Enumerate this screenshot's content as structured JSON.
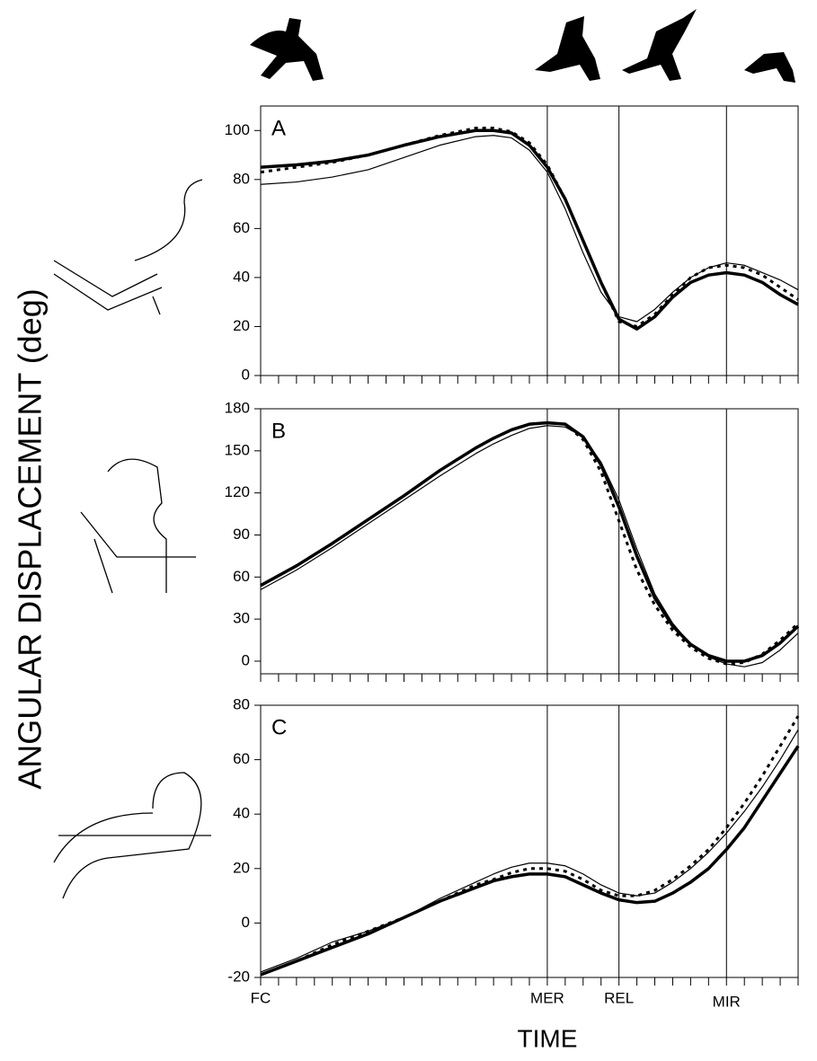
{
  "figure": {
    "y_label": "ANGULAR DISPLACEMENT (deg)",
    "x_label": "TIME",
    "xlim": [
      0,
      30
    ],
    "xticks": [
      {
        "value": 0,
        "label": "FC"
      },
      {
        "value": 16,
        "label": "MER"
      },
      {
        "value": 20,
        "label": "REL"
      },
      {
        "value": 26,
        "label": "MIR"
      }
    ],
    "minor_xticks": [
      0,
      1,
      2,
      3,
      4,
      5,
      6,
      7,
      8,
      9,
      10,
      11,
      12,
      13,
      14,
      15,
      16,
      17,
      18,
      19,
      20,
      21,
      22,
      23,
      24,
      25,
      26,
      27,
      28,
      29,
      30
    ],
    "vlines": [
      16,
      20,
      26
    ]
  },
  "chart_data": [
    {
      "type": "line",
      "label": "A",
      "ylim": [
        0,
        110
      ],
      "yticks": [
        0,
        20,
        40,
        60,
        80,
        100
      ],
      "x": [
        0,
        2,
        4,
        6,
        8,
        10,
        12,
        13,
        14,
        15,
        16,
        17,
        18,
        19,
        20,
        21,
        22,
        23,
        24,
        25,
        26,
        27,
        28,
        29,
        30
      ],
      "series": [
        {
          "style": "thick",
          "color": "#000",
          "values": [
            85,
            86,
            87.5,
            90,
            94,
            97.5,
            100,
            100,
            99,
            94,
            85,
            72,
            55,
            38,
            23,
            19,
            24,
            32,
            38,
            41,
            42,
            41,
            38,
            33,
            29
          ]
        },
        {
          "style": "thin",
          "color": "#000",
          "values": [
            78,
            79,
            81,
            84,
            89,
            94,
            97.5,
            98,
            97,
            92,
            83,
            68,
            50,
            34,
            24,
            22,
            27,
            34,
            40,
            44,
            46,
            45,
            42,
            39,
            35
          ]
        },
        {
          "style": "dashed",
          "color": "#000",
          "values": [
            83,
            85,
            87,
            90,
            94,
            98,
            101,
            101,
            99.5,
            95,
            86,
            72,
            55,
            38,
            22,
            20,
            25,
            33,
            40,
            44,
            45,
            44,
            41,
            36,
            31
          ]
        }
      ]
    },
    {
      "type": "line",
      "label": "B",
      "ylim": [
        -9,
        180
      ],
      "yticks": [
        0,
        30,
        60,
        90,
        120,
        150,
        180
      ],
      "x": [
        0,
        2,
        4,
        6,
        8,
        10,
        12,
        13,
        14,
        15,
        16,
        17,
        18,
        19,
        20,
        21,
        22,
        23,
        24,
        25,
        26,
        27,
        28,
        29,
        30
      ],
      "series": [
        {
          "style": "thick",
          "color": "#000",
          "values": [
            54,
            68,
            84,
            101,
            118,
            136,
            152,
            159,
            165,
            169,
            170,
            169,
            160,
            140,
            110,
            75,
            45,
            25,
            12,
            4,
            0,
            0,
            4,
            13,
            25
          ]
        },
        {
          "style": "thin",
          "color": "#000",
          "values": [
            51,
            65,
            81,
            98,
            115,
            132,
            148,
            155,
            161,
            166,
            168,
            167,
            160,
            142,
            115,
            80,
            48,
            27,
            12,
            3,
            -2,
            -4,
            -1,
            8,
            20
          ]
        },
        {
          "style": "dashed",
          "color": "#000",
          "values": [
            54,
            68,
            84,
            101,
            118,
            136,
            152,
            159,
            165,
            169,
            170,
            169,
            158,
            135,
            100,
            65,
            40,
            22,
            10,
            2,
            -2,
            -1,
            5,
            15,
            27
          ]
        }
      ]
    },
    {
      "type": "line",
      "label": "C",
      "ylim": [
        -20,
        80
      ],
      "yticks": [
        -20,
        0,
        20,
        40,
        60,
        80
      ],
      "x": [
        0,
        2,
        4,
        6,
        8,
        10,
        12,
        13,
        14,
        15,
        16,
        17,
        18,
        19,
        20,
        21,
        22,
        23,
        24,
        25,
        26,
        27,
        28,
        29,
        30
      ],
      "series": [
        {
          "style": "thick",
          "color": "#000",
          "values": [
            -19,
            -14,
            -9,
            -4,
            2,
            8,
            13,
            15.5,
            17,
            18,
            18,
            17,
            14,
            11,
            8.5,
            7.5,
            8,
            11,
            15,
            20,
            27,
            35,
            45,
            55,
            65
          ]
        },
        {
          "style": "thin",
          "color": "#000",
          "values": [
            -18,
            -13,
            -7,
            -3,
            2,
            9,
            15,
            18,
            20.5,
            22,
            22,
            21,
            18,
            14,
            11,
            10,
            11,
            15,
            20,
            26,
            33,
            41,
            50,
            60,
            71
          ]
        },
        {
          "style": "dashed",
          "color": "#000",
          "values": [
            -19,
            -14,
            -8,
            -3,
            2,
            8,
            14,
            16,
            18.5,
            20,
            20,
            19,
            16,
            12,
            10,
            10,
            12,
            16,
            21,
            27,
            35,
            44,
            54,
            65,
            76
          ]
        }
      ]
    }
  ]
}
